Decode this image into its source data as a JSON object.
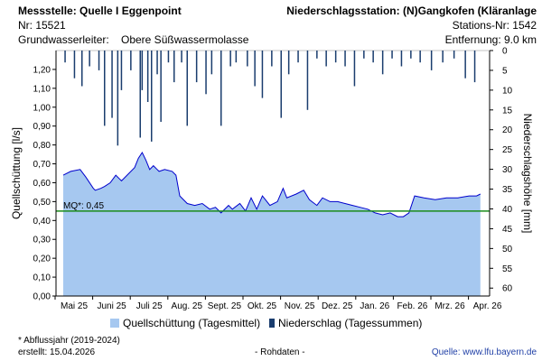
{
  "header": {
    "station_title": "Messstelle: Quelle I Eggenpoint",
    "station_nr": "Nr: 15521",
    "aquifer_label": "Grundwasserleiter:",
    "aquifer_value": "Obere Süßwassermolasse",
    "precip_title": "Niederschlagsstation: (N)Gangkofen (Kläranlage",
    "precip_nr": "Stations-Nr: 1542",
    "distance": "Entfernung: 9.0 km"
  },
  "footer": {
    "note": "* Abflussjahr (2019-2024)",
    "created": "erstellt:  15.04.2026",
    "raw": "- Rohdaten -",
    "source": "Quelle:  www.lfu.bayern.de"
  },
  "colors": {
    "discharge_fill": "#a6c8f0",
    "discharge_line": "#0000cc",
    "precip": "#1a3d6e",
    "mq_line": "#1a8c1a"
  },
  "chart_data": {
    "type": "area",
    "x_tick_labels": [
      "Mai 25",
      "Juni 25",
      "Juli 25",
      "Aug. 25",
      "Sept. 25",
      "Okt. 25",
      "Nov. 25",
      "Dez. 25",
      "Jan. 26",
      "Feb. 26",
      "Mrz. 26",
      "Apr. 26"
    ],
    "ylabel": "Quellschüttung [l/s]",
    "ylabel_right": "Niederschlagshöhe [mm]",
    "ylim": [
      0,
      1.3
    ],
    "y_ticks": [
      "0,00",
      "0,10",
      "0,20",
      "0,30",
      "0,40",
      "0,50",
      "0,60",
      "0,70",
      "0,80",
      "0,90",
      "1,00",
      "1,10",
      "1,20"
    ],
    "y2lim": [
      0,
      62
    ],
    "y2_ticks": [
      "0",
      "5",
      "10",
      "15",
      "20",
      "25",
      "30",
      "35",
      "40",
      "45",
      "50",
      "55",
      "60"
    ],
    "mq_value": 0.45,
    "mq_label": "MQ*: 0,45",
    "legend": {
      "discharge": "Quellschüttung (Tagesmittel)",
      "precip": "Niederschlag (Tagessummen)"
    },
    "discharge_series": {
      "name": "Quellschüttung (Tagesmittel)",
      "x_month_index": [
        0,
        0.2,
        0.45,
        0.6,
        0.8,
        0.85,
        1.0,
        1.1,
        1.25,
        1.4,
        1.5,
        1.55,
        1.7,
        1.9,
        2.0,
        2.1,
        2.2,
        2.3,
        2.4,
        2.5,
        2.55,
        2.7,
        2.9,
        3.0,
        3.1,
        3.3,
        3.5,
        3.7,
        3.9,
        4.05,
        4.2,
        4.4,
        4.5,
        4.7,
        4.85,
        5.0,
        5.15,
        5.3,
        5.5,
        5.7,
        5.85,
        5.95,
        6.2,
        6.4,
        6.55,
        6.75,
        6.9,
        7.1,
        7.3,
        7.5,
        7.7,
        7.9,
        8.1,
        8.3,
        8.5,
        8.7,
        8.9,
        9.05,
        9.2,
        9.35,
        9.6,
        9.9,
        10.2,
        10.5,
        10.8,
        11.0,
        11.1
      ],
      "values": [
        0.64,
        0.66,
        0.67,
        0.63,
        0.57,
        0.56,
        0.57,
        0.58,
        0.6,
        0.64,
        0.62,
        0.61,
        0.64,
        0.68,
        0.73,
        0.76,
        0.72,
        0.67,
        0.69,
        0.67,
        0.66,
        0.67,
        0.66,
        0.64,
        0.53,
        0.49,
        0.48,
        0.49,
        0.46,
        0.47,
        0.44,
        0.48,
        0.46,
        0.49,
        0.45,
        0.52,
        0.46,
        0.53,
        0.48,
        0.5,
        0.57,
        0.52,
        0.54,
        0.56,
        0.51,
        0.48,
        0.52,
        0.5,
        0.5,
        0.49,
        0.48,
        0.47,
        0.46,
        0.44,
        0.43,
        0.44,
        0.42,
        0.42,
        0.44,
        0.53,
        0.52,
        0.51,
        0.52,
        0.52,
        0.53,
        0.53,
        0.54
      ]
    },
    "precip_series": {
      "name": "Niederschlag (Tagessummen)",
      "x_month_index": [
        0.05,
        0.3,
        0.5,
        0.7,
        0.95,
        1.1,
        1.3,
        1.45,
        1.55,
        1.8,
        2.05,
        2.1,
        2.25,
        2.35,
        2.5,
        2.6,
        2.8,
        2.95,
        3.15,
        3.3,
        3.55,
        3.8,
        3.95,
        4.2,
        4.45,
        4.6,
        4.9,
        5.1,
        5.3,
        5.55,
        5.8,
        6.0,
        6.25,
        6.5,
        6.75,
        7.0,
        7.25,
        7.5,
        7.75,
        8.0,
        8.25,
        8.5,
        8.75,
        9.0,
        9.25,
        9.5,
        9.8,
        10.1,
        10.4,
        10.7,
        10.95
      ],
      "values": [
        3,
        7,
        9,
        4,
        5,
        19,
        17,
        24,
        10,
        5,
        22,
        10,
        13,
        23,
        6,
        18,
        3,
        8,
        3,
        19,
        8,
        11,
        6,
        19,
        4,
        3,
        4,
        9,
        12,
        4,
        17,
        6,
        3,
        15,
        2,
        4,
        3,
        4,
        9,
        2,
        3,
        6,
        2,
        4,
        2,
        3,
        5,
        3,
        2,
        7,
        8
      ]
    }
  }
}
